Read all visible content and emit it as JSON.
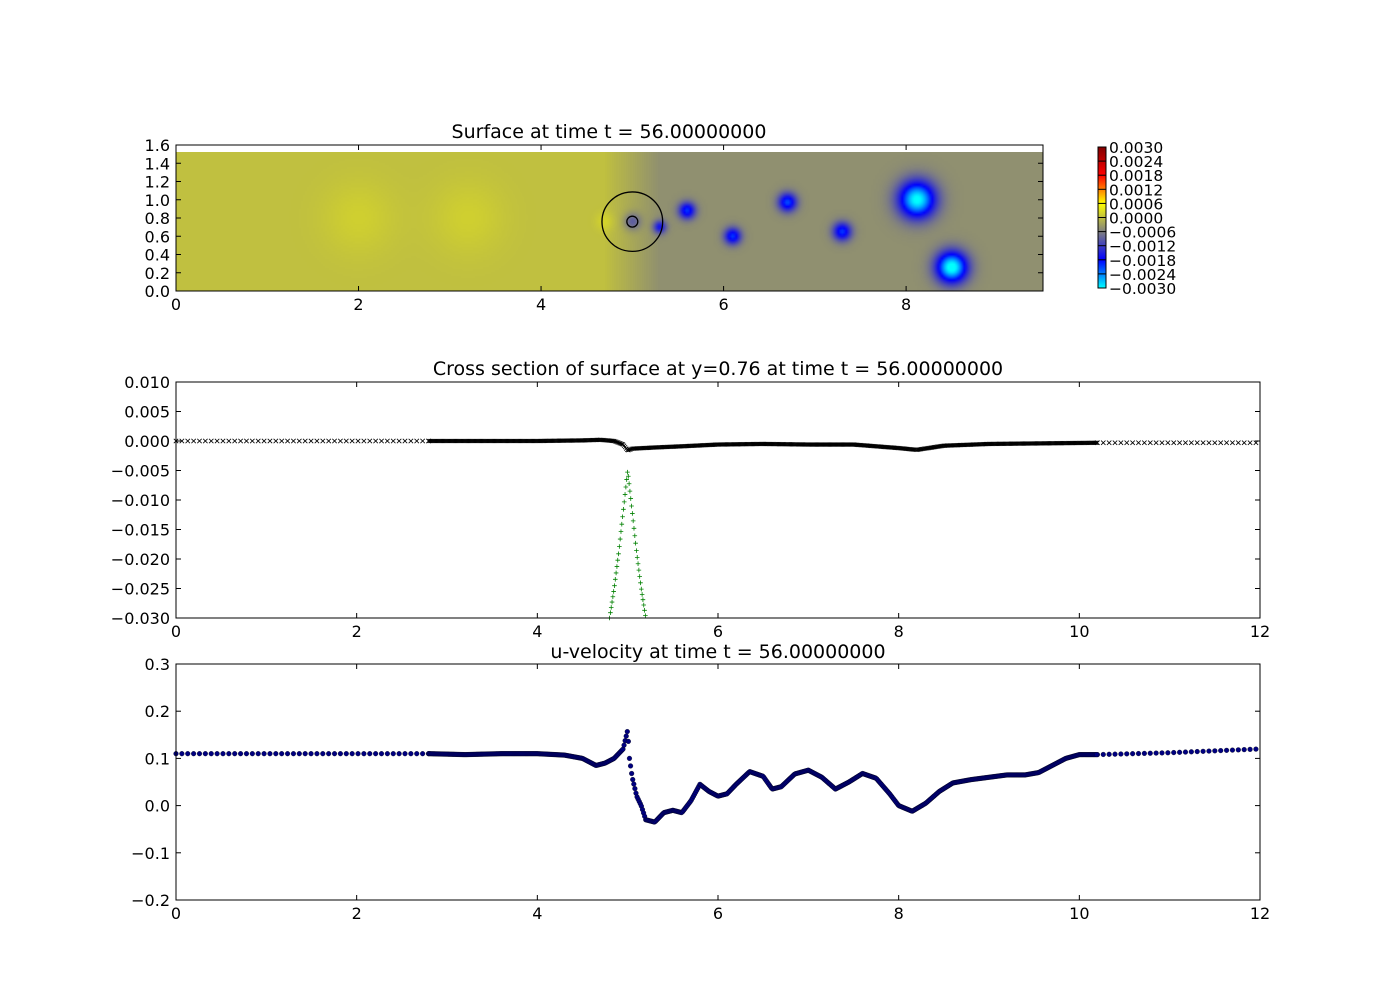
{
  "chart_data": [
    {
      "type": "heatmap",
      "title": "Surface at time t =    56.00000000",
      "xlim": [
        0,
        9.5
      ],
      "ylim": [
        0,
        1.6
      ],
      "domain_ymax": 1.52,
      "xticks": [
        0,
        2,
        4,
        6,
        8
      ],
      "yticks": [
        "0.0",
        "0.2",
        "0.4",
        "0.6",
        "0.8",
        "1.0",
        "1.2",
        "1.4",
        "1.6"
      ],
      "colorbar": {
        "min": -0.003,
        "max": 0.003,
        "ticks": [
          "0.0030",
          "0.0024",
          "0.0018",
          "0.0012",
          "0.0006",
          "0.0000",
          "−0.0006",
          "−0.0012",
          "−0.0018",
          "−0.0024",
          "−0.0030"
        ],
        "colors": [
          "#00ffff",
          "#0000ff",
          "#808080",
          "#ffff00",
          "#ff0000",
          "#800000"
        ]
      },
      "base_level": 0.0,
      "wake_start_x": 4.7,
      "wake_level": -0.00045,
      "dips": [
        {
          "x": 5.0,
          "y": 0.76,
          "amp": -0.0007,
          "r": 0.09
        },
        {
          "x": 5.3,
          "y": 0.7,
          "amp": -0.0012,
          "r": 0.07
        },
        {
          "x": 5.6,
          "y": 0.88,
          "amp": -0.0016,
          "r": 0.09
        },
        {
          "x": 6.1,
          "y": 0.6,
          "amp": -0.0016,
          "r": 0.09
        },
        {
          "x": 6.7,
          "y": 0.97,
          "amp": -0.0017,
          "r": 0.1
        },
        {
          "x": 7.3,
          "y": 0.65,
          "amp": -0.0016,
          "r": 0.1
        },
        {
          "x": 8.12,
          "y": 1.0,
          "amp": -0.0026,
          "r": 0.2
        },
        {
          "x": 8.5,
          "y": 0.26,
          "amp": -0.0027,
          "r": 0.17
        }
      ],
      "bumps": [
        {
          "x": 2.0,
          "y": 0.8,
          "amp": 0.00015,
          "r": 0.4
        },
        {
          "x": 3.2,
          "y": 0.8,
          "amp": 0.00015,
          "r": 0.4
        },
        {
          "x": 4.7,
          "y": 0.76,
          "amp": 0.0002,
          "r": 0.1
        }
      ],
      "cylinder": {
        "x": 5.0,
        "y": 0.76,
        "radius": 0.35,
        "inner_radius": 0.06
      }
    },
    {
      "type": "scatter",
      "title": "Cross section of surface at y=0.76 at time t =    56.00000000",
      "xlim": [
        0,
        12
      ],
      "ylim": [
        -0.03,
        0.01
      ],
      "xticks": [
        "0",
        "2",
        "4",
        "6",
        "8",
        "10",
        "12"
      ],
      "yticks": [
        "0.010",
        "0.005",
        "0.000",
        "−0.005",
        "−0.010",
        "−0.015",
        "−0.020",
        "−0.025",
        "−0.030"
      ],
      "series": [
        {
          "marker": "x",
          "color": "#000000",
          "x_range": [
            0,
            2.8
          ],
          "step": 0.065,
          "points": [
            [
              0,
              0.0
            ],
            [
              2.8,
              0.0
            ]
          ]
        },
        {
          "marker": "x",
          "color": "#000000",
          "x_range": [
            10.2,
            12
          ],
          "step": 0.065,
          "points": [
            [
              10.2,
              -0.0003
            ],
            [
              12,
              -0.0003
            ]
          ]
        },
        {
          "marker": "x-dense",
          "color": "#000000",
          "x_range": [
            2.8,
            10.2
          ],
          "step": 0.012,
          "points": [
            [
              2.8,
              0.0
            ],
            [
              4.0,
              0.0
            ],
            [
              4.5,
              0.0001
            ],
            [
              4.7,
              0.0002
            ],
            [
              4.85,
              0.0
            ],
            [
              4.95,
              -0.0006
            ],
            [
              5.0,
              -0.0016
            ],
            [
              5.05,
              -0.0013
            ],
            [
              5.3,
              -0.0011
            ],
            [
              5.6,
              -0.0009
            ],
            [
              6.0,
              -0.0006
            ],
            [
              6.5,
              -0.0005
            ],
            [
              7.0,
              -0.0006
            ],
            [
              7.5,
              -0.0006
            ],
            [
              8.0,
              -0.0012
            ],
            [
              8.2,
              -0.0015
            ],
            [
              8.5,
              -0.0008
            ],
            [
              9.0,
              -0.0005
            ],
            [
              10.2,
              -0.0003
            ]
          ]
        },
        {
          "marker": "+",
          "color": "#008000",
          "x_range": [
            4.8,
            5.2
          ],
          "step": 0.009,
          "points": [
            [
              4.8,
              -0.03
            ],
            [
              4.85,
              -0.025
            ],
            [
              4.9,
              -0.019
            ],
            [
              4.95,
              -0.012
            ],
            [
              5.0,
              -0.005
            ],
            [
              5.05,
              -0.012
            ],
            [
              5.1,
              -0.019
            ],
            [
              5.15,
              -0.025
            ],
            [
              5.2,
              -0.03
            ]
          ]
        }
      ]
    },
    {
      "type": "scatter",
      "title": "u-velocity at time t =    56.00000000",
      "xlim": [
        0,
        12
      ],
      "ylim": [
        -0.2,
        0.3
      ],
      "xticks": [
        "0",
        "2",
        "4",
        "6",
        "8",
        "10",
        "12"
      ],
      "yticks": [
        "0.3",
        "0.2",
        "0.1",
        "0.0",
        "−0.1",
        "−0.2"
      ],
      "series": [
        {
          "marker": "dot",
          "color": "#00007f",
          "x_range": [
            0,
            2.8
          ],
          "step": 0.065,
          "points": [
            [
              0,
              0.11
            ],
            [
              2.8,
              0.11
            ]
          ]
        },
        {
          "marker": "dot",
          "color": "#00007f",
          "x_range": [
            10.2,
            12
          ],
          "step": 0.065,
          "points": [
            [
              10.2,
              0.108
            ],
            [
              11.0,
              0.112
            ],
            [
              12,
              0.12
            ]
          ]
        },
        {
          "marker": "dot-dense",
          "color": "#00007f",
          "x_range": [
            2.8,
            10.2
          ],
          "step": 0.012,
          "points": [
            [
              2.8,
              0.11
            ],
            [
              3.2,
              0.108
            ],
            [
              3.6,
              0.11
            ],
            [
              4.0,
              0.11
            ],
            [
              4.3,
              0.107
            ],
            [
              4.5,
              0.1
            ],
            [
              4.6,
              0.09
            ],
            [
              4.65,
              0.085
            ],
            [
              4.75,
              0.09
            ],
            [
              4.85,
              0.1
            ],
            [
              4.95,
              0.12
            ],
            [
              5.0,
              0.16
            ],
            [
              5.02,
              0.1
            ],
            [
              5.05,
              0.06
            ],
            [
              5.1,
              0.02
            ],
            [
              5.15,
              0.0
            ],
            [
              5.2,
              -0.03
            ],
            [
              5.3,
              -0.035
            ],
            [
              5.4,
              -0.015
            ],
            [
              5.5,
              -0.01
            ],
            [
              5.6,
              -0.015
            ],
            [
              5.7,
              0.01
            ],
            [
              5.8,
              0.045
            ],
            [
              5.9,
              0.03
            ],
            [
              6.0,
              0.02
            ],
            [
              6.1,
              0.025
            ],
            [
              6.2,
              0.045
            ],
            [
              6.35,
              0.072
            ],
            [
              6.5,
              0.062
            ],
            [
              6.6,
              0.035
            ],
            [
              6.7,
              0.04
            ],
            [
              6.85,
              0.067
            ],
            [
              7.0,
              0.075
            ],
            [
              7.15,
              0.06
            ],
            [
              7.3,
              0.035
            ],
            [
              7.45,
              0.05
            ],
            [
              7.6,
              0.068
            ],
            [
              7.75,
              0.058
            ],
            [
              7.9,
              0.025
            ],
            [
              8.0,
              0.0
            ],
            [
              8.15,
              -0.012
            ],
            [
              8.3,
              0.005
            ],
            [
              8.45,
              0.03
            ],
            [
              8.6,
              0.048
            ],
            [
              8.8,
              0.055
            ],
            [
              9.0,
              0.06
            ],
            [
              9.2,
              0.065
            ],
            [
              9.4,
              0.065
            ],
            [
              9.55,
              0.07
            ],
            [
              9.7,
              0.085
            ],
            [
              9.85,
              0.1
            ],
            [
              10.0,
              0.108
            ],
            [
              10.2,
              0.108
            ]
          ]
        }
      ]
    }
  ]
}
